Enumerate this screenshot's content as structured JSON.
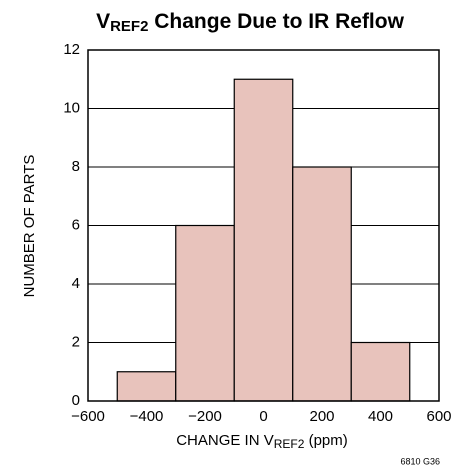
{
  "chart_data": {
    "type": "histogram",
    "title": [
      "V",
      "REF2",
      " Change Due to IR Reflow"
    ],
    "xlabel": [
      "CHANGE IN V",
      "REF2",
      " (ppm)"
    ],
    "ylabel": "NUMBER OF PARTS",
    "note": "6810 G36",
    "bins": [
      -500,
      -300,
      -100,
      100,
      300,
      500
    ],
    "values": [
      1,
      6,
      11,
      8,
      2
    ],
    "color": "#e8c3bc",
    "xlim": [
      -600,
      600
    ],
    "xticks": [
      {
        "value": -600,
        "label": "−600"
      },
      {
        "value": -400,
        "label": "−400"
      },
      {
        "value": -200,
        "label": "−200"
      },
      0,
      200,
      400,
      600
    ],
    "ylim": [
      0,
      12
    ],
    "yticks": [
      0,
      2,
      4,
      6,
      8,
      10,
      12
    ],
    "grid": true
  }
}
